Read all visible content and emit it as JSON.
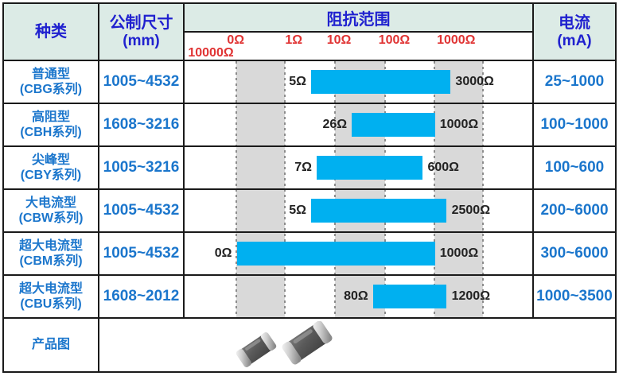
{
  "headers": {
    "type": "种类",
    "size_line1": "公制尺寸",
    "size_line2": "(mm)",
    "impedance": "阻抗范围",
    "current_line1": "电流",
    "current_line2": "(mA)"
  },
  "scale": {
    "labels": [
      "0Ω",
      "1Ω",
      "10Ω",
      "100Ω",
      "1000Ω"
    ],
    "overflow_label": "10000Ω",
    "label_pcts": [
      14.7,
      31.4,
      44.4,
      60.3,
      78.1
    ]
  },
  "rows": [
    {
      "type1": "普通型",
      "type2": "(CBG系列)",
      "size": "1005~4532",
      "current": "25~1000",
      "bar": {
        "min": "5Ω",
        "max": "3000Ω",
        "left_pct": 36.4,
        "width_pct": 40.1
      }
    },
    {
      "type1": "高阻型",
      "type2": "(CBH系列)",
      "size": "1608~3216",
      "current": "100~1000",
      "bar": {
        "min": "26Ω",
        "max": "1000Ω",
        "left_pct": 48.1,
        "width_pct": 23.9
      }
    },
    {
      "type1": "尖峰型",
      "type2": "(CBY系列)",
      "size": "1005~3216",
      "current": "100~600",
      "bar": {
        "min": "7Ω",
        "max": "600Ω",
        "left_pct": 38.0,
        "width_pct": 30.5
      }
    },
    {
      "type1": "大电流型",
      "type2": "(CBW系列)",
      "size": "1005~4532",
      "current": "200~6000",
      "bar": {
        "min": "5Ω",
        "max": "2500Ω",
        "left_pct": 36.4,
        "width_pct": 39.0
      }
    },
    {
      "type1": "超大电流型",
      "type2": "(CBM系列)",
      "size": "1005~4532",
      "current": "300~6000",
      "bar": {
        "min": "0Ω",
        "max": "1000Ω",
        "left_pct": 15.0,
        "width_pct": 57.0
      }
    },
    {
      "type1": "超大电流型",
      "type2": "(CBU系列)",
      "size": "1608~2012",
      "current": "1000~3500",
      "bar": {
        "min": "80Ω",
        "max": "1200Ω",
        "left_pct": 54.2,
        "width_pct": 21.2
      }
    }
  ],
  "product_row": {
    "label": "产品图"
  },
  "colors": {
    "bar": "#00b0f0",
    "band": "#d9d9d9",
    "header_bg": "#dcebe6",
    "header_text": "#2021cf",
    "body_text": "#1b76cc",
    "scale_text": "#e03333",
    "grid_dot": "#8c8c8c",
    "border": "#1a1a1a"
  },
  "chart_data": {
    "type": "bar",
    "subtype": "horizontal-range-bars",
    "x_scale": "log",
    "title": "阻抗范围",
    "x_ticks": [
      "0Ω",
      "1Ω",
      "10Ω",
      "100Ω",
      "1000Ω",
      "10000Ω"
    ],
    "categories": [
      "普通型(CBG系列)",
      "高阻型(CBH系列)",
      "尖峰型(CBY系列)",
      "大电流型(CBW系列)",
      "超大电流型(CBM系列)",
      "超大电流型(CBU系列)"
    ],
    "series": [
      {
        "name": "阻抗范围(Ω)",
        "ranges": [
          [
            5,
            3000
          ],
          [
            26,
            1000
          ],
          [
            7,
            600
          ],
          [
            5,
            2500
          ],
          [
            0,
            1000
          ],
          [
            80,
            1200
          ]
        ]
      }
    ],
    "gridline_pcts": [
      14.8,
      28.7,
      43.1,
      57.4,
      71.5,
      85.4
    ],
    "band_pairs": [
      [
        0,
        1
      ],
      [
        2,
        3
      ],
      [
        4,
        5
      ]
    ],
    "grid": "dotted-vertical-decade-lines",
    "legend": "none"
  }
}
